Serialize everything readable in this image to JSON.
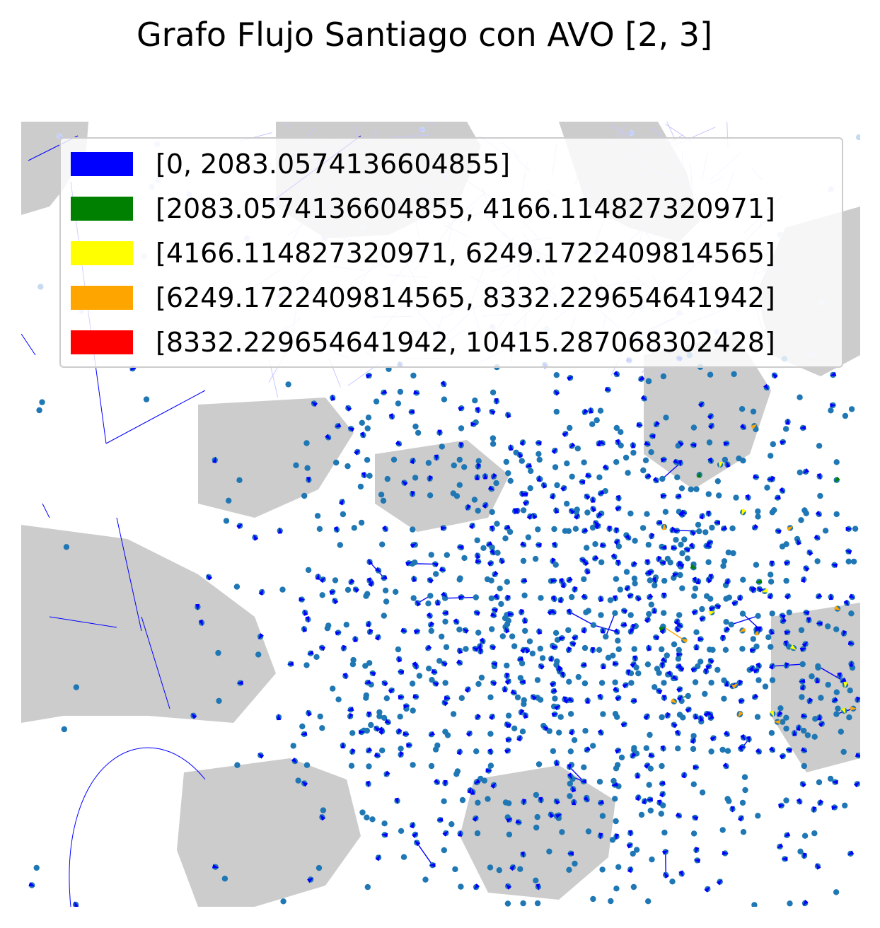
{
  "title": "Grafo Flujo Santiago con AVO [2, 3]",
  "colors": {
    "background_region": "#cccccc",
    "node": "#1f77b4",
    "faint_edge": "#c8c8ff"
  },
  "legend": {
    "items": [
      {
        "label": "[0, 2083.0574136604855]",
        "color": "#0000ff"
      },
      {
        "label": "[2083.0574136604855, 4166.114827320971]",
        "color": "#008000"
      },
      {
        "label": "[4166.114827320971, 6249.1722409814565]",
        "color": "#ffff00"
      },
      {
        "label": "[6249.1722409814565, 8332.229654641942]",
        "color": "#ffa500"
      },
      {
        "label": "[8332.229654641942, 10415.287068302428]",
        "color": "#ff0000"
      }
    ]
  }
}
